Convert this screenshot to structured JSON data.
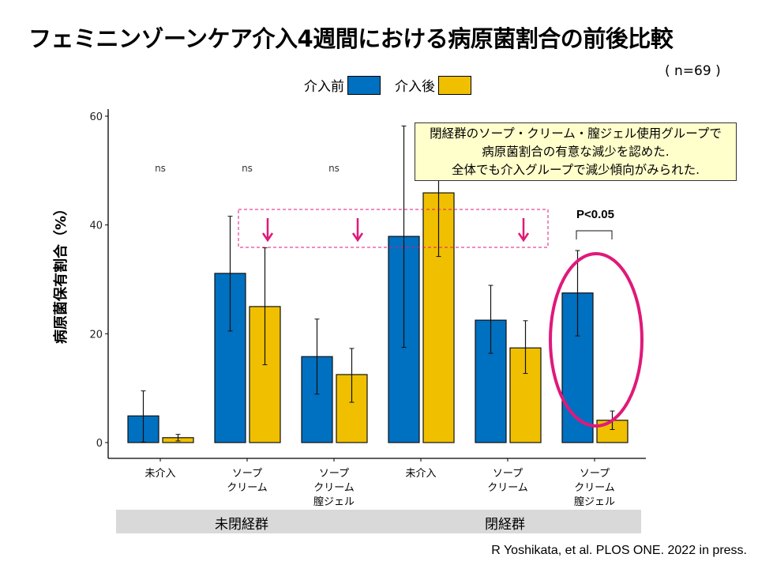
{
  "title": "フェミニンゾーンケア介入4週間における病原菌割合の前後比較",
  "sample_size": "( n=69 )",
  "callout": {
    "lines": [
      "閉経群のソープ・クリーム・膣ジェル使用グループで",
      "病原菌割合の有意な減少を認めた.",
      "全体でも介入グループで減少傾向がみられた."
    ]
  },
  "citation": "R Yoshikata, et al. PLOS ONE. 2022 in press.",
  "colors": {
    "before": "#0070c0",
    "after": "#f0c000",
    "highlight": "#e0197a"
  },
  "chart_data": {
    "type": "bar",
    "ylabel": "病原菌保有割合（%）",
    "ylim": [
      0,
      60
    ],
    "yticks": [
      0,
      20,
      40,
      60
    ],
    "grid": false,
    "legend_placement": "top",
    "categories": [
      "未介入",
      "ソープ\nクリーム",
      "ソープ\nクリーム\n膣ジェル",
      "未介入",
      "ソープ\nクリーム",
      "ソープ\nクリーム\n膣ジェル"
    ],
    "groups": [
      {
        "name": "未閉経群",
        "categories": [
          0,
          1,
          2
        ]
      },
      {
        "name": "閉経群",
        "categories": [
          3,
          4,
          5
        ]
      }
    ],
    "series": [
      {
        "name": "介入前",
        "values": [
          4.9,
          31.1,
          15.8,
          37.9,
          22.5,
          27.5
        ],
        "err_low": [
          0.1,
          20.5,
          8.9,
          17.5,
          16.4,
          19.6
        ],
        "err_high": [
          9.5,
          41.6,
          22.7,
          58.2,
          28.9,
          35.3
        ]
      },
      {
        "name": "介入後",
        "values": [
          0.9,
          25.0,
          12.5,
          45.9,
          17.4,
          4.1
        ],
        "err_low": [
          0.3,
          14.3,
          7.4,
          34.2,
          12.7,
          2.4
        ],
        "err_high": [
          1.5,
          35.8,
          17.3,
          57.6,
          22.4,
          5.8
        ]
      }
    ],
    "annotations": {
      "ns": [
        "ns",
        "ns",
        "ns"
      ],
      "significance": "P<0.05"
    }
  }
}
